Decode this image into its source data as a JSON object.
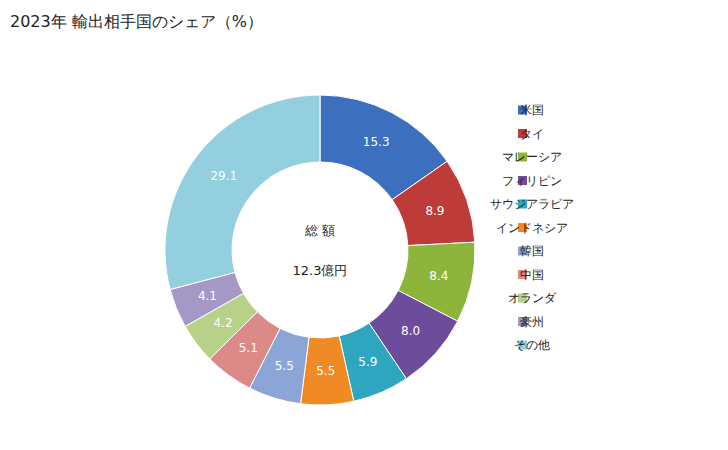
{
  "chart_data": {
    "type": "pie",
    "title": "2023年 輸出相手国のシェア（%）",
    "categories": [
      "米国",
      "タイ",
      "マレーシア",
      "フィリピン",
      "サウジアラビア",
      "インドネシア",
      "韓国",
      "中国",
      "オランダ",
      "豪州",
      "その他"
    ],
    "values": [
      15.3,
      8.9,
      8.4,
      8.0,
      5.9,
      5.5,
      5.5,
      5.1,
      4.2,
      4.1,
      29.1
    ],
    "value_labels": [
      "15.3",
      "8.9",
      "8.4",
      "8.0",
      "5.9",
      "5.5",
      "5.5",
      "5.1",
      "4.2",
      "4.1",
      "29.1"
    ],
    "colors": [
      "#3d6fbf",
      "#bd3b38",
      "#8db53c",
      "#6d4c9c",
      "#2ea6c0",
      "#f08a24",
      "#8aa5d6",
      "#db8a88",
      "#b8d188",
      "#a698c6",
      "#93cfdf"
    ],
    "data_labels": true,
    "legend": "right",
    "annotations": [
      "総 額",
      "12.3億円"
    ]
  }
}
